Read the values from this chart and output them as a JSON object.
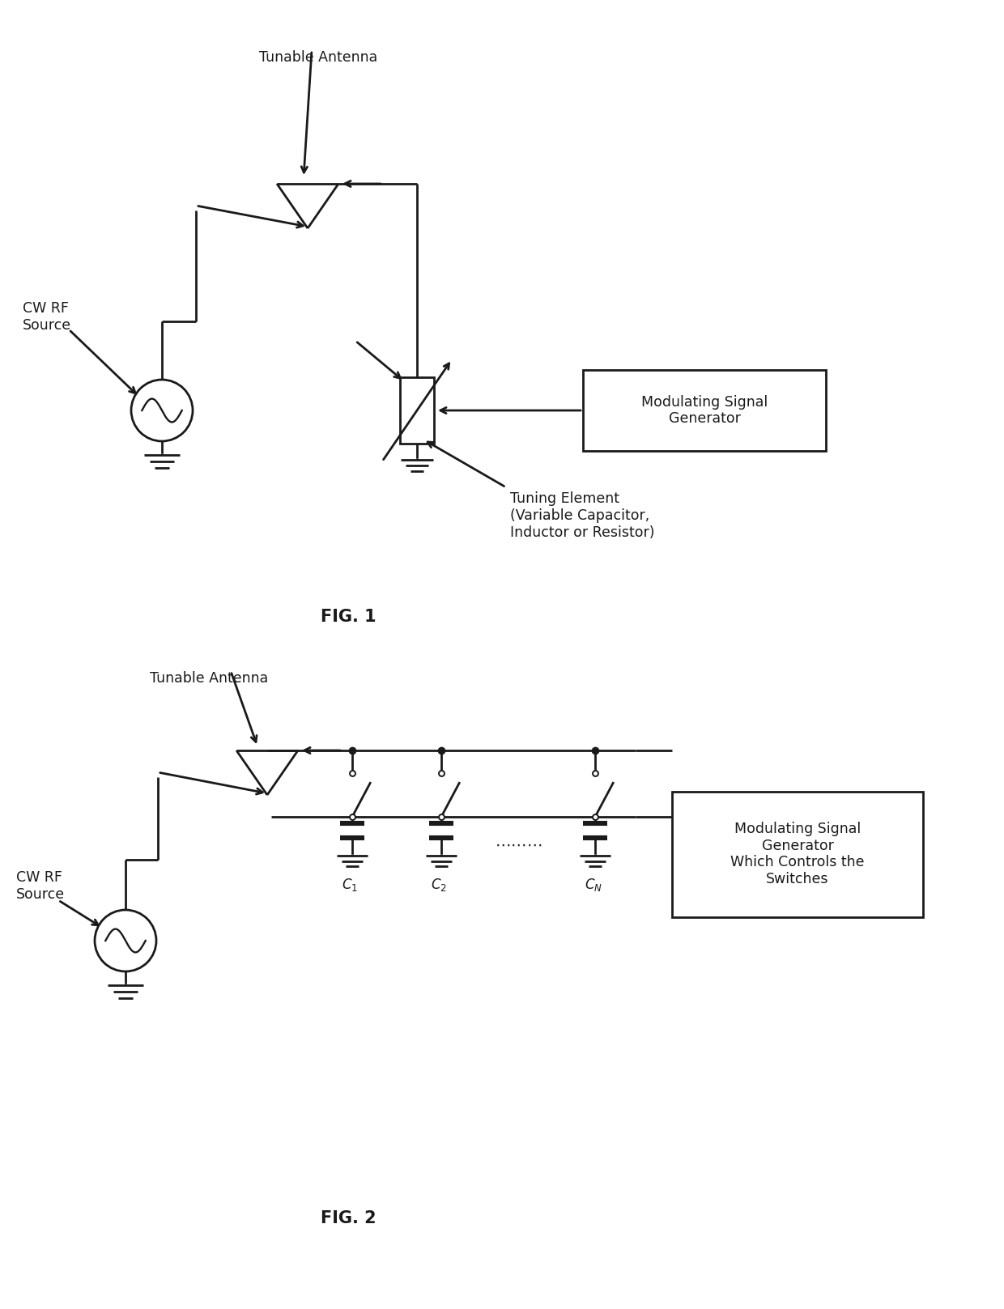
{
  "bg_color": "#ffffff",
  "line_color": "#1a1a1a",
  "line_width": 2.0,
  "fig1_label": "FIG. 1",
  "fig2_label": "FIG. 2",
  "fig1_title_antenna": "Tunable Antenna",
  "fig1_title_source": "CW RF\nSource",
  "fig1_title_modgen": "Modulating Signal\nGenerator",
  "fig1_title_tuning": "Tuning Element\n(Variable Capacitor,\nInductor or Resistor)",
  "fig2_title_antenna": "Tunable Antenna",
  "fig2_title_source": "CW RF\nSource",
  "fig2_title_modgen": "Modulating Signal\nGenerator\nWhich Controls the\nSwitches",
  "font_size_label": 15,
  "font_size_text": 12.5
}
